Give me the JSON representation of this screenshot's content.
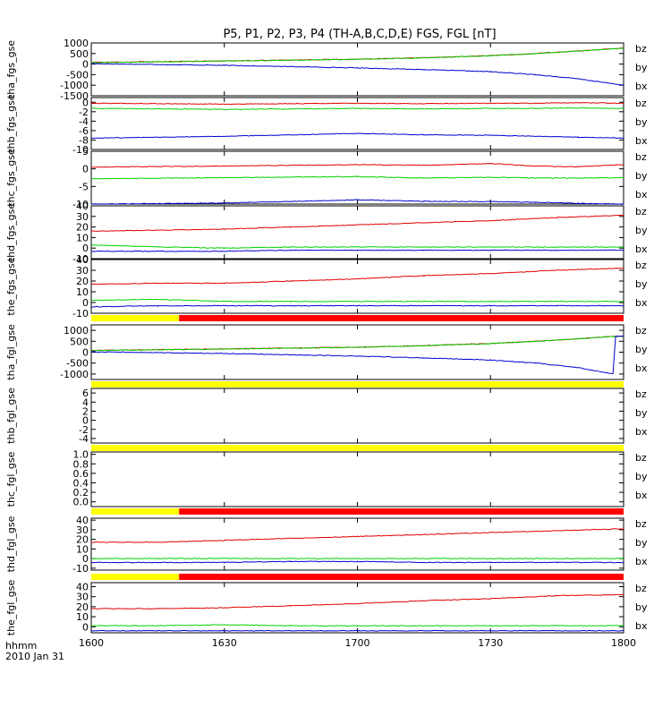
{
  "title": "P5, P1, P2, P3, P4 (TH-A,B,C,D,E) FGS, FGL [nT]",
  "colors": {
    "bz": "#e00000",
    "by": "#00d000",
    "bx": "#0000d0",
    "flag_yellow": "#ffff00",
    "flag_red": "#ff0000"
  },
  "x_axis": {
    "range_hhmm": [
      "1600",
      "1800"
    ],
    "tick_labels": [
      "1600",
      "1630",
      "1700",
      "1730",
      "1800"
    ],
    "footer_label": "hhmm",
    "date_label": "2010 Jan 31"
  },
  "chart_data": [
    {
      "type": "line",
      "ylabel": "tha_fgs_gse",
      "ylim": [
        -1500,
        1000
      ],
      "y_ticks": [
        "1000",
        "500",
        "0",
        "-500",
        "-1000",
        "-1500"
      ],
      "x_hours": [
        16.0,
        16.5,
        17.0,
        17.25,
        17.5,
        17.67,
        17.83,
        18.0
      ],
      "series": [
        {
          "name": "bz",
          "values": [
            80,
            150,
            230,
            300,
            400,
            500,
            620,
            760
          ]
        },
        {
          "name": "by",
          "values": [
            70,
            145,
            225,
            295,
            395,
            495,
            615,
            755
          ]
        },
        {
          "name": "bx",
          "values": [
            20,
            -60,
            -180,
            -260,
            -360,
            -500,
            -700,
            -1000
          ]
        }
      ]
    },
    {
      "type": "line",
      "ylabel": "thb_fgs_gse",
      "ylim": [
        -10,
        1
      ],
      "y_ticks": [
        "0",
        "-2",
        "-4",
        "-6",
        "-8",
        "-10"
      ],
      "x_hours": [
        16.0,
        16.5,
        17.0,
        17.25,
        17.5,
        17.67,
        17.83,
        18.0
      ],
      "series": [
        {
          "name": "bz",
          "values": [
            -0.2,
            -0.4,
            -0.2,
            -0.3,
            -0.2,
            -0.2,
            -0.1,
            -0.2
          ]
        },
        {
          "name": "by",
          "values": [
            -1.3,
            -1.5,
            -1.3,
            -1.4,
            -1.3,
            -1.3,
            -1.2,
            -1.3
          ]
        },
        {
          "name": "bx",
          "values": [
            -7.6,
            -7.2,
            -6.6,
            -6.9,
            -7.0,
            -7.2,
            -7.4,
            -7.6
          ]
        }
      ]
    },
    {
      "type": "line",
      "ylabel": "thc_fgs_gse",
      "ylim": [
        -10,
        5
      ],
      "y_ticks": [
        "5",
        "0",
        "-5",
        "-10"
      ],
      "x_hours": [
        16.0,
        16.5,
        17.0,
        17.25,
        17.5,
        17.67,
        17.83,
        18.0
      ],
      "series": [
        {
          "name": "bz",
          "values": [
            0.5,
            0.8,
            1.2,
            1.0,
            1.5,
            0.8,
            0.6,
            1.2
          ]
        },
        {
          "name": "by",
          "values": [
            -2.8,
            -2.5,
            -2.2,
            -2.6,
            -2.4,
            -2.6,
            -2.6,
            -2.5
          ]
        },
        {
          "name": "bx",
          "values": [
            -10.0,
            -9.7,
            -8.8,
            -9.2,
            -9.3,
            -9.5,
            -9.8,
            -10.0
          ]
        }
      ]
    },
    {
      "type": "line",
      "ylabel": "thd_fgs_gse",
      "ylim": [
        -10,
        40
      ],
      "y_ticks": [
        "40",
        "30",
        "20",
        "10",
        "0",
        "-10"
      ],
      "x_hours": [
        16.0,
        16.25,
        16.5,
        16.75,
        17.0,
        17.25,
        17.5,
        17.75,
        18.0
      ],
      "series": [
        {
          "name": "bz",
          "values": [
            16,
            17,
            18,
            20,
            22,
            24,
            26,
            29,
            31
          ]
        },
        {
          "name": "by",
          "values": [
            3,
            1,
            0,
            1,
            1,
            1,
            1,
            1,
            1
          ]
        },
        {
          "name": "bx",
          "values": [
            -3,
            -3,
            -3,
            -2,
            -2,
            -2,
            -2,
            -2,
            -2
          ]
        }
      ]
    },
    {
      "type": "line",
      "ylabel": "the_fgs_gse",
      "ylim": [
        -10,
        40
      ],
      "y_ticks": [
        "40",
        "30",
        "20",
        "10",
        "0",
        "-10"
      ],
      "x_hours": [
        16.0,
        16.25,
        16.5,
        16.75,
        17.0,
        17.25,
        17.5,
        17.75,
        18.0
      ],
      "series": [
        {
          "name": "bz",
          "values": [
            17,
            18,
            18,
            20,
            22,
            25,
            27,
            30,
            32
          ]
        },
        {
          "name": "by",
          "values": [
            2,
            3,
            1,
            1,
            1,
            1,
            1,
            1,
            1
          ]
        },
        {
          "name": "bx",
          "values": [
            -4,
            -3,
            -3,
            -3,
            -3,
            -3,
            -3,
            -3,
            -3
          ]
        }
      ]
    },
    {
      "type": "line",
      "ylabel": "tha_fgl_gse",
      "ylim": [
        -1250,
        1250
      ],
      "y_ticks": [
        "1000",
        "500",
        "0",
        "-500",
        "-1000"
      ],
      "x_hours": [
        16.0,
        16.5,
        17.0,
        17.25,
        17.5,
        17.67,
        17.83,
        17.96,
        17.97,
        18.0
      ],
      "series": [
        {
          "name": "bz",
          "values": [
            80,
            150,
            230,
            300,
            400,
            500,
            620,
            720,
            720,
            740
          ]
        },
        {
          "name": "by",
          "values": [
            70,
            145,
            225,
            295,
            395,
            495,
            615,
            715,
            715,
            735
          ]
        },
        {
          "name": "bx",
          "values": [
            20,
            -60,
            -180,
            -260,
            -360,
            -500,
            -700,
            -1000,
            730,
            750
          ]
        }
      ]
    },
    {
      "type": "line",
      "ylabel": "thb_fgl_gse",
      "ylim": [
        -5,
        7
      ],
      "y_ticks": [
        "6",
        "4",
        "2",
        "0",
        "-2",
        "-4"
      ],
      "x_hours": [],
      "series": []
    },
    {
      "type": "line",
      "ylabel": "thc_fgl_gse",
      "ylim": [
        -0.1,
        1.05
      ],
      "y_ticks": [
        "1.0",
        "0.8",
        "0.6",
        "0.4",
        "0.2",
        "0.0"
      ],
      "x_hours": [],
      "series": []
    },
    {
      "type": "line",
      "ylabel": "thd_fgl_gse",
      "ylim": [
        -12,
        42
      ],
      "y_ticks": [
        "40",
        "30",
        "20",
        "10",
        "0",
        "-10"
      ],
      "x_hours": [
        16.0,
        16.25,
        16.5,
        16.75,
        17.0,
        17.25,
        17.5,
        17.75,
        18.0
      ],
      "series": [
        {
          "name": "bz",
          "values": [
            17,
            17,
            19,
            21,
            23,
            25,
            27,
            29,
            31
          ]
        },
        {
          "name": "by",
          "values": [
            0,
            0,
            0,
            0,
            0,
            0,
            0,
            0,
            0
          ]
        },
        {
          "name": "bx",
          "values": [
            -4,
            -4,
            -4,
            -3,
            -3,
            -4,
            -4,
            -4,
            -4
          ]
        }
      ]
    },
    {
      "type": "line",
      "ylabel": "the_fgl_gse",
      "ylim": [
        -6,
        44
      ],
      "y_ticks": [
        "40",
        "30",
        "20",
        "10",
        "0"
      ],
      "x_hours": [
        16.0,
        16.25,
        16.5,
        16.75,
        17.0,
        17.25,
        17.5,
        17.75,
        18.0
      ],
      "series": [
        {
          "name": "bz",
          "values": [
            18,
            18,
            19,
            21,
            23,
            26,
            28,
            31,
            32
          ]
        },
        {
          "name": "by",
          "values": [
            1,
            1,
            2,
            1,
            1,
            1,
            1,
            1,
            1
          ]
        },
        {
          "name": "bx",
          "values": [
            -4,
            -4,
            -4,
            -4,
            -4,
            -4,
            -4,
            -4,
            -4
          ]
        }
      ]
    }
  ],
  "status_bars": [
    {
      "after_panel": 4,
      "segments": [
        {
          "color": "flag_yellow",
          "from_hours": 16.0,
          "to_hours": 16.33
        },
        {
          "color": "flag_red",
          "from_hours": 16.33,
          "to_hours": 18.0
        }
      ]
    },
    {
      "after_panel": 5,
      "segments": [
        {
          "color": "flag_yellow",
          "from_hours": 16.0,
          "to_hours": 18.0
        }
      ]
    },
    {
      "after_panel": 6,
      "segments": [
        {
          "color": "flag_yellow",
          "from_hours": 16.0,
          "to_hours": 18.0
        }
      ]
    },
    {
      "after_panel": 7,
      "segments": [
        {
          "color": "flag_yellow",
          "from_hours": 16.0,
          "to_hours": 16.33
        },
        {
          "color": "flag_red",
          "from_hours": 16.33,
          "to_hours": 18.0
        }
      ]
    },
    {
      "after_panel": 8,
      "segments": [
        {
          "color": "flag_yellow",
          "from_hours": 16.0,
          "to_hours": 16.33
        },
        {
          "color": "flag_red",
          "from_hours": 16.33,
          "to_hours": 18.0
        }
      ]
    }
  ]
}
